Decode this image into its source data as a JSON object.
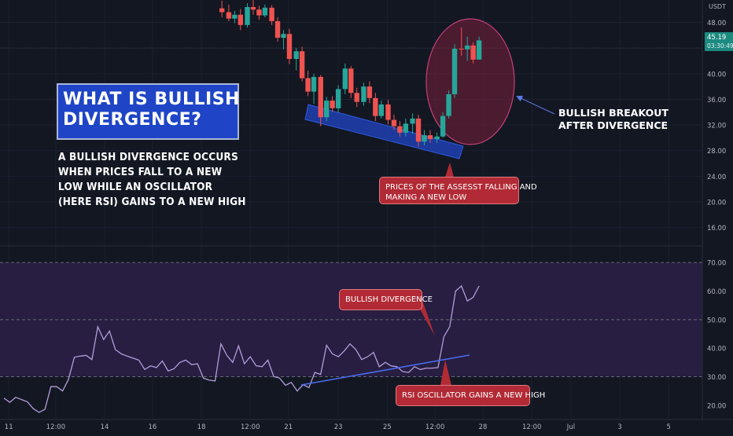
{
  "annotations": {
    "title_lines": [
      "WHAT IS BULLISH",
      "DIVERGENCE?"
    ],
    "description_lines": [
      "A BULLISH DIVERGENCE OCCURS",
      "WHEN PRICES FALL TO A NEW",
      "LOW WHILE AN OSCILLATOR",
      "(HERE RSI) GAINS TO A NEW HIGH"
    ],
    "breakout_lines": [
      "BULLISH BREAKOUT",
      "AFTER DIVERGENCE"
    ],
    "price_callout_lines": [
      "PRICES OF THE ASSESST FALLING AND",
      "MAKING A NEW LOW"
    ],
    "divergence_callout": "BULLISH DIVERGENCE",
    "rsi_callout": "RSI OSCILLATOR GAINS A NEW HIGH"
  },
  "colors": {
    "background": "#131722",
    "up_candle": "#26a69a",
    "down_candle": "#ef5350",
    "rsi_line": "#b39ddb",
    "rsi_band": "#2a1f45",
    "support_channel": "#1e3fb0",
    "trend_line": "#4a6cf0",
    "callout": "#b22a35",
    "highlight_circle": "#7a1f3a"
  },
  "chart_data": [
    {
      "type": "candlestick",
      "currency": "USDT",
      "y_ticks": [
        16,
        20,
        24,
        28,
        32,
        36,
        40,
        44,
        48
      ],
      "y_tick_labels": [
        "16.00",
        "20.00",
        "24.00",
        "28.00",
        "32.00",
        "36.00",
        "40.00",
        "44.00",
        "48.00"
      ],
      "ylim": [
        13.5,
        51.5
      ],
      "current_price_label": "45.19",
      "countdown_label": "03:30:49",
      "x_ticks": [
        {
          "label": "11",
          "x": 0.5
        },
        {
          "label": "12:00",
          "x": 5.3
        },
        {
          "label": "14",
          "x": 10.3
        },
        {
          "label": "16",
          "x": 15.2
        },
        {
          "label": "18",
          "x": 20.2
        },
        {
          "label": "12:00",
          "x": 25.2
        },
        {
          "label": "21",
          "x": 29.1
        },
        {
          "label": "23",
          "x": 34.2
        },
        {
          "label": "25",
          "x": 39.2
        },
        {
          "label": "12:00",
          "x": 44.1
        },
        {
          "label": "28",
          "x": 49.0
        },
        {
          "label": "12:00",
          "x": 54.0
        },
        {
          "label": "Jul",
          "x": 58.0
        },
        {
          "label": "3",
          "x": 63.0
        },
        {
          "label": "5",
          "x": 68.0
        }
      ],
      "candles": [
        {
          "x": 22.3,
          "o": 50.2,
          "h": 51.4,
          "l": 48.8,
          "c": 49.6
        },
        {
          "x": 23.0,
          "o": 49.6,
          "h": 50.8,
          "l": 48.2,
          "c": 48.6
        },
        {
          "x": 23.6,
          "o": 48.6,
          "h": 49.8,
          "l": 47.9,
          "c": 49.2
        },
        {
          "x": 24.2,
          "o": 49.2,
          "h": 50.1,
          "l": 46.8,
          "c": 47.6
        },
        {
          "x": 24.9,
          "o": 47.6,
          "h": 51.0,
          "l": 47.2,
          "c": 50.4
        },
        {
          "x": 25.5,
          "o": 50.4,
          "h": 51.5,
          "l": 49.2,
          "c": 50.0
        },
        {
          "x": 26.1,
          "o": 50.0,
          "h": 50.6,
          "l": 48.4,
          "c": 49.1
        },
        {
          "x": 26.7,
          "o": 49.1,
          "h": 50.8,
          "l": 48.8,
          "c": 50.3
        },
        {
          "x": 27.4,
          "o": 50.3,
          "h": 50.7,
          "l": 47.6,
          "c": 48.2
        },
        {
          "x": 28.0,
          "o": 48.2,
          "h": 48.8,
          "l": 45.0,
          "c": 45.6
        },
        {
          "x": 28.6,
          "o": 45.6,
          "h": 46.8,
          "l": 43.8,
          "c": 46.2
        },
        {
          "x": 29.2,
          "o": 46.2,
          "h": 47.0,
          "l": 41.5,
          "c": 42.3
        },
        {
          "x": 29.9,
          "o": 42.3,
          "h": 44.0,
          "l": 40.5,
          "c": 43.5
        },
        {
          "x": 30.5,
          "o": 43.5,
          "h": 44.2,
          "l": 38.8,
          "c": 39.3
        },
        {
          "x": 31.1,
          "o": 39.3,
          "h": 40.5,
          "l": 36.5,
          "c": 37.2
        },
        {
          "x": 31.7,
          "o": 37.2,
          "h": 40.0,
          "l": 35.3,
          "c": 39.5
        },
        {
          "x": 32.4,
          "o": 39.5,
          "h": 39.8,
          "l": 31.8,
          "c": 33.2
        },
        {
          "x": 33.0,
          "o": 33.2,
          "h": 36.4,
          "l": 32.6,
          "c": 35.8
        },
        {
          "x": 33.6,
          "o": 35.8,
          "h": 36.5,
          "l": 34.0,
          "c": 34.6
        },
        {
          "x": 34.2,
          "o": 34.6,
          "h": 38.2,
          "l": 34.0,
          "c": 37.6
        },
        {
          "x": 34.9,
          "o": 37.6,
          "h": 41.6,
          "l": 36.8,
          "c": 40.8
        },
        {
          "x": 35.5,
          "o": 40.8,
          "h": 41.2,
          "l": 36.2,
          "c": 37.0
        },
        {
          "x": 36.1,
          "o": 37.0,
          "h": 37.8,
          "l": 34.8,
          "c": 35.6
        },
        {
          "x": 36.8,
          "o": 35.6,
          "h": 38.6,
          "l": 35.0,
          "c": 38.0
        },
        {
          "x": 37.4,
          "o": 38.0,
          "h": 38.8,
          "l": 35.4,
          "c": 36.2
        },
        {
          "x": 38.0,
          "o": 36.2,
          "h": 37.0,
          "l": 32.6,
          "c": 33.4
        },
        {
          "x": 38.6,
          "o": 33.4,
          "h": 35.8,
          "l": 33.0,
          "c": 35.2
        },
        {
          "x": 39.3,
          "o": 35.2,
          "h": 35.9,
          "l": 32.1,
          "c": 32.8
        },
        {
          "x": 39.9,
          "o": 32.8,
          "h": 33.6,
          "l": 31.2,
          "c": 31.8
        },
        {
          "x": 40.5,
          "o": 31.8,
          "h": 32.6,
          "l": 30.2,
          "c": 30.8
        },
        {
          "x": 41.1,
          "o": 30.8,
          "h": 33.0,
          "l": 30.2,
          "c": 32.2
        },
        {
          "x": 41.8,
          "o": 32.2,
          "h": 33.8,
          "l": 30.6,
          "c": 33.0
        },
        {
          "x": 42.4,
          "o": 33.0,
          "h": 33.6,
          "l": 28.6,
          "c": 29.4
        },
        {
          "x": 43.0,
          "o": 29.4,
          "h": 31.2,
          "l": 28.8,
          "c": 30.4
        },
        {
          "x": 43.6,
          "o": 30.4,
          "h": 31.2,
          "l": 29.2,
          "c": 29.8
        },
        {
          "x": 44.3,
          "o": 29.8,
          "h": 30.8,
          "l": 29.2,
          "c": 30.2
        },
        {
          "x": 44.9,
          "o": 30.2,
          "h": 34.0,
          "l": 30.0,
          "c": 33.4
        },
        {
          "x": 45.5,
          "o": 33.4,
          "h": 37.4,
          "l": 33.0,
          "c": 36.8
        },
        {
          "x": 46.1,
          "o": 36.8,
          "h": 44.6,
          "l": 36.2,
          "c": 43.9
        },
        {
          "x": 46.8,
          "o": 43.9,
          "h": 47.2,
          "l": 42.8,
          "c": 43.8
        },
        {
          "x": 47.4,
          "o": 43.8,
          "h": 45.8,
          "l": 42.0,
          "c": 44.4
        },
        {
          "x": 48.0,
          "o": 44.4,
          "h": 44.9,
          "l": 41.6,
          "c": 42.2
        },
        {
          "x": 48.6,
          "o": 42.2,
          "h": 45.8,
          "l": 42.2,
          "c": 45.2
        }
      ]
    },
    {
      "type": "line",
      "name": "RSI",
      "y_ticks": [
        20,
        30,
        40,
        50,
        60,
        70
      ],
      "y_tick_labels": [
        "20.00",
        "30.00",
        "40.00",
        "50.00",
        "60.00",
        "70.00"
      ],
      "ylim": [
        15,
        75
      ],
      "overbought": 70,
      "oversold": 30,
      "midline": 50,
      "x": [
        0.0,
        0.6,
        1.2,
        1.8,
        2.4,
        3.0,
        3.6,
        4.2,
        4.8,
        5.4,
        6.0,
        6.6,
        7.2,
        7.8,
        8.4,
        9.0,
        9.6,
        10.2,
        10.8,
        11.4,
        12.0,
        12.6,
        13.2,
        13.8,
        14.4,
        15.0,
        15.6,
        16.2,
        16.8,
        17.4,
        18.0,
        18.6,
        19.2,
        19.8,
        20.4,
        21.0,
        21.6,
        22.2,
        22.8,
        23.4,
        24.0,
        24.6,
        25.2,
        25.8,
        26.4,
        27.0,
        27.6,
        28.2,
        28.8,
        29.4,
        30.0,
        30.6,
        31.2,
        31.8,
        32.4,
        33.0,
        33.6,
        34.2,
        34.8,
        35.4,
        36.0,
        36.6,
        37.2,
        37.8,
        38.4,
        39.0,
        39.6,
        40.2,
        40.8,
        41.4,
        42.0,
        42.6,
        43.2,
        43.8,
        44.4,
        45.0,
        45.6,
        46.2,
        46.8,
        47.4,
        48.0,
        48.6
      ],
      "values": [
        22.5,
        21.0,
        22.8,
        22.0,
        21.2,
        18.8,
        17.5,
        18.6,
        26.5,
        26.5,
        25.0,
        29.0,
        36.8,
        37.2,
        37.5,
        36.0,
        47.5,
        43.0,
        46.0,
        39.5,
        38.0,
        37.2,
        36.5,
        35.8,
        32.5,
        33.8,
        33.2,
        35.5,
        32.0,
        32.8,
        35.0,
        35.8,
        34.2,
        34.5,
        29.5,
        28.8,
        28.5,
        41.5,
        37.5,
        35.0,
        40.8,
        34.5,
        37.0,
        33.8,
        33.5,
        35.8,
        30.0,
        29.5,
        27.0,
        28.0,
        25.0,
        27.2,
        26.2,
        31.5,
        30.8,
        41.0,
        38.0,
        37.0,
        39.0,
        41.5,
        39.5,
        36.0,
        37.0,
        38.5,
        33.5,
        35.0,
        33.8,
        33.5,
        31.8,
        31.5,
        33.5,
        32.5,
        33.0,
        33.0,
        33.2,
        44.0,
        47.5,
        60.0,
        61.8,
        56.5,
        57.8,
        61.8
      ]
    }
  ]
}
